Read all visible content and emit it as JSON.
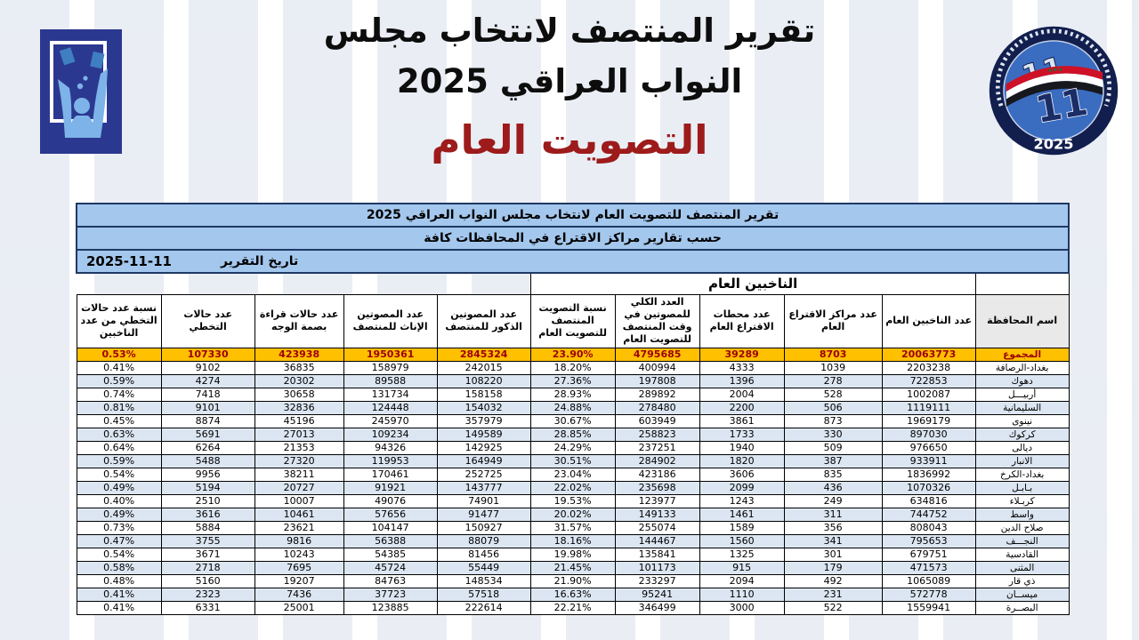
{
  "header": {
    "title_line1": "تقرير المنتصف لانتخاب مجلس",
    "title_line2": "النواب العراقي 2025",
    "subtitle": "التصويت العام",
    "logo_right_number": "11",
    "logo_right_year": "2025"
  },
  "colors": {
    "subtitle_red": "#9d1b1b",
    "band_blue": "#a4c7ed",
    "band_border_navy": "#1f3864",
    "total_row_fill": "#ffc000",
    "total_row_text": "#9c0006",
    "zebra_blue": "#dce6f2",
    "grid": "#000000"
  },
  "report": {
    "table_title": "تقرير المنتصف للتصويت العام لانتخاب مجلس النواب العراقي 2025",
    "table_subtitle": "حسب تقارير مراكز الاقتراع في المحافظات كافة",
    "date_label": "تاريخ التقرير",
    "date_value": "2025-11-11",
    "group_header": "الناخبين العام",
    "columns": [
      "اسم المحافظة",
      "عدد الناخبين العام",
      "عدد مراكز الاقتراع العام",
      "عدد محطات الاقتراع العام",
      "العدد الكلي للمصوتين في وقت المنتصف للتصويت العام",
      "نسبة التصويت المنتصف للتصويت العام",
      "عدد المصوتين الذكور للمنتصف",
      "عدد المصوتين الإناث للمنتصف",
      "عدد حالات قراءة بصمة الوجه",
      "عدد حالات التخطي",
      "نسبة عدد حالات التخطي من عدد الناخبين"
    ],
    "rows": [
      {
        "name": "المجموع",
        "values": [
          "20063773",
          "8703",
          "39289",
          "4795685",
          "23.90%",
          "2845324",
          "1950361",
          "423938",
          "107330",
          "0.53%"
        ]
      },
      {
        "name": "بغداد-الرصافة",
        "values": [
          "2203238",
          "1039",
          "4333",
          "400994",
          "18.20%",
          "242015",
          "158979",
          "36835",
          "9102",
          "0.41%"
        ]
      },
      {
        "name": "دهوك",
        "values": [
          "722853",
          "278",
          "1396",
          "197808",
          "27.36%",
          "108220",
          "89588",
          "20302",
          "4274",
          "0.59%"
        ]
      },
      {
        "name": "أربيـــل",
        "values": [
          "1002087",
          "528",
          "2004",
          "289892",
          "28.93%",
          "158158",
          "131734",
          "30658",
          "7418",
          "0.74%"
        ]
      },
      {
        "name": "السليمانية",
        "values": [
          "1119111",
          "506",
          "2200",
          "278480",
          "24.88%",
          "154032",
          "124448",
          "32836",
          "9101",
          "0.81%"
        ]
      },
      {
        "name": "نينوى",
        "values": [
          "1969179",
          "873",
          "3861",
          "603949",
          "30.67%",
          "357979",
          "245970",
          "45196",
          "8874",
          "0.45%"
        ]
      },
      {
        "name": "كركوك",
        "values": [
          "897030",
          "330",
          "1733",
          "258823",
          "28.85%",
          "149589",
          "109234",
          "27013",
          "5691",
          "0.63%"
        ]
      },
      {
        "name": "ديالى",
        "values": [
          "976650",
          "509",
          "1940",
          "237251",
          "24.29%",
          "142925",
          "94326",
          "21353",
          "6264",
          "0.64%"
        ]
      },
      {
        "name": "الانبار",
        "values": [
          "933911",
          "387",
          "1820",
          "284902",
          "30.51%",
          "164949",
          "119953",
          "27320",
          "5488",
          "0.59%"
        ]
      },
      {
        "name": "بغداد-الكرخ",
        "values": [
          "1836992",
          "835",
          "3606",
          "423186",
          "23.04%",
          "252725",
          "170461",
          "38211",
          "9956",
          "0.54%"
        ]
      },
      {
        "name": "بـابـل",
        "values": [
          "1070326",
          "436",
          "2099",
          "235698",
          "22.02%",
          "143777",
          "91921",
          "20727",
          "5194",
          "0.49%"
        ]
      },
      {
        "name": "كربـلاء",
        "values": [
          "634816",
          "249",
          "1243",
          "123977",
          "19.53%",
          "74901",
          "49076",
          "10007",
          "2510",
          "0.40%"
        ]
      },
      {
        "name": "واسط",
        "values": [
          "744752",
          "311",
          "1461",
          "149133",
          "20.02%",
          "91477",
          "57656",
          "10461",
          "3616",
          "0.49%"
        ]
      },
      {
        "name": "صلاح الدين",
        "values": [
          "808043",
          "356",
          "1589",
          "255074",
          "31.57%",
          "150927",
          "104147",
          "23621",
          "5884",
          "0.73%"
        ]
      },
      {
        "name": "النجـــف",
        "values": [
          "795653",
          "341",
          "1560",
          "144467",
          "18.16%",
          "88079",
          "56388",
          "9816",
          "3755",
          "0.47%"
        ]
      },
      {
        "name": "القادسية",
        "values": [
          "679751",
          "301",
          "1325",
          "135841",
          "19.98%",
          "81456",
          "54385",
          "10243",
          "3671",
          "0.54%"
        ]
      },
      {
        "name": "المثنى",
        "values": [
          "471573",
          "179",
          "915",
          "101173",
          "21.45%",
          "55449",
          "45724",
          "7695",
          "2718",
          "0.58%"
        ]
      },
      {
        "name": "ذي قار",
        "values": [
          "1065089",
          "492",
          "2094",
          "233297",
          "21.90%",
          "148534",
          "84763",
          "19207",
          "5160",
          "0.48%"
        ]
      },
      {
        "name": "ميســان",
        "values": [
          "572778",
          "231",
          "1110",
          "95241",
          "16.63%",
          "57518",
          "37723",
          "7436",
          "2323",
          "0.41%"
        ]
      },
      {
        "name": "البصــرة",
        "values": [
          "1559941",
          "522",
          "3000",
          "346499",
          "22.21%",
          "222614",
          "123885",
          "25001",
          "6331",
          "0.41%"
        ]
      }
    ]
  }
}
